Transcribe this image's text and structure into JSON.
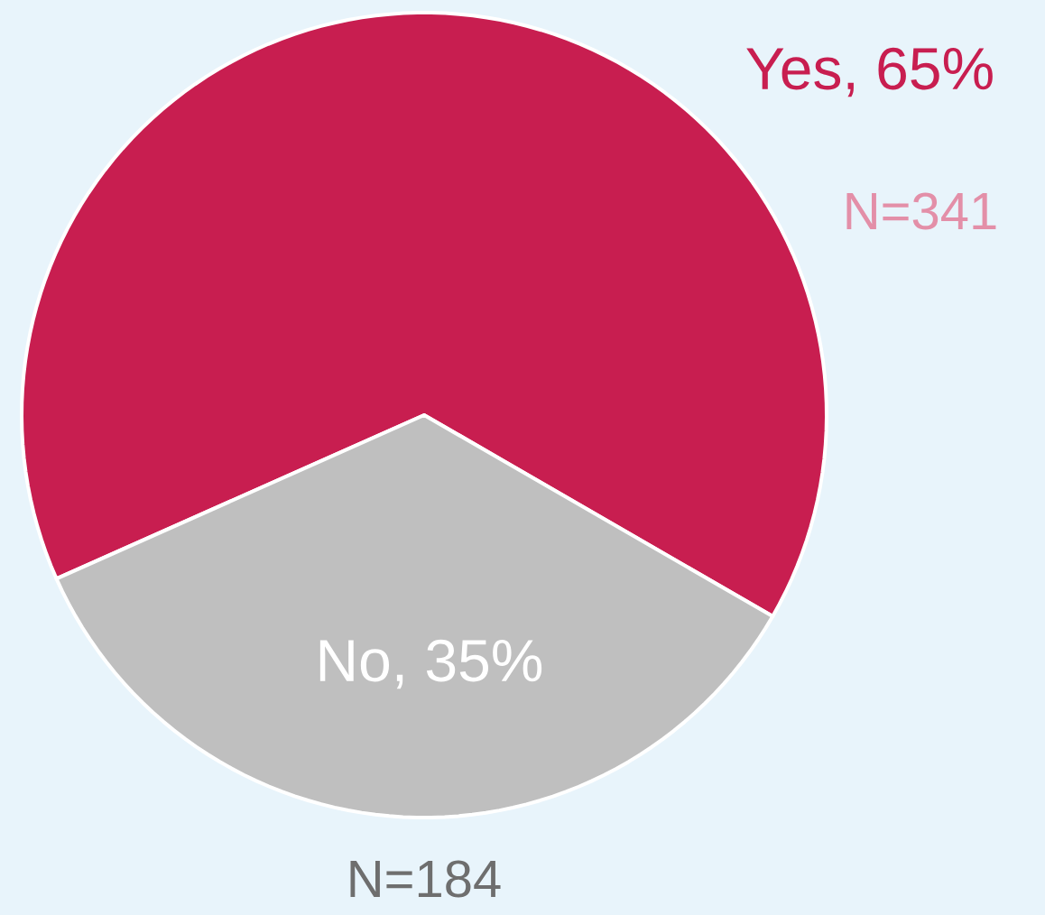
{
  "chart_data": {
    "type": "pie",
    "categories": [
      "Yes, 65%",
      "No, 35%"
    ],
    "values": [
      65,
      35
    ],
    "colors": [
      "#c81e50",
      "#bfbfbf"
    ],
    "annotations": [
      "N=341",
      "N=184"
    ]
  }
}
